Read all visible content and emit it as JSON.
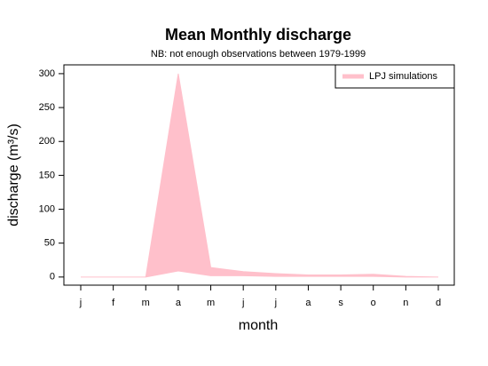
{
  "chart_data": {
    "type": "band",
    "title": "Mean Monthly discharge",
    "subtitle": "NB: not enough observations between 1979-1999",
    "x_label": "month",
    "y_label": "discharge (m³/s)",
    "categories": [
      "j",
      "f",
      "m",
      "a",
      "m",
      "j",
      "j",
      "a",
      "s",
      "o",
      "n",
      "d"
    ],
    "series": [
      {
        "name": "LPJ simulations",
        "color": "#ffc0cb",
        "upper": [
          0,
          0,
          0,
          300,
          14,
          8,
          5,
          3,
          3,
          4,
          1,
          0
        ],
        "lower": [
          0,
          0,
          0,
          9,
          2,
          2,
          1,
          1,
          1,
          1,
          0,
          0
        ]
      }
    ],
    "ylim": [
      -12,
      313
    ],
    "yticks": [
      0,
      50,
      100,
      150,
      200,
      250,
      300
    ],
    "legend": "top-right"
  }
}
